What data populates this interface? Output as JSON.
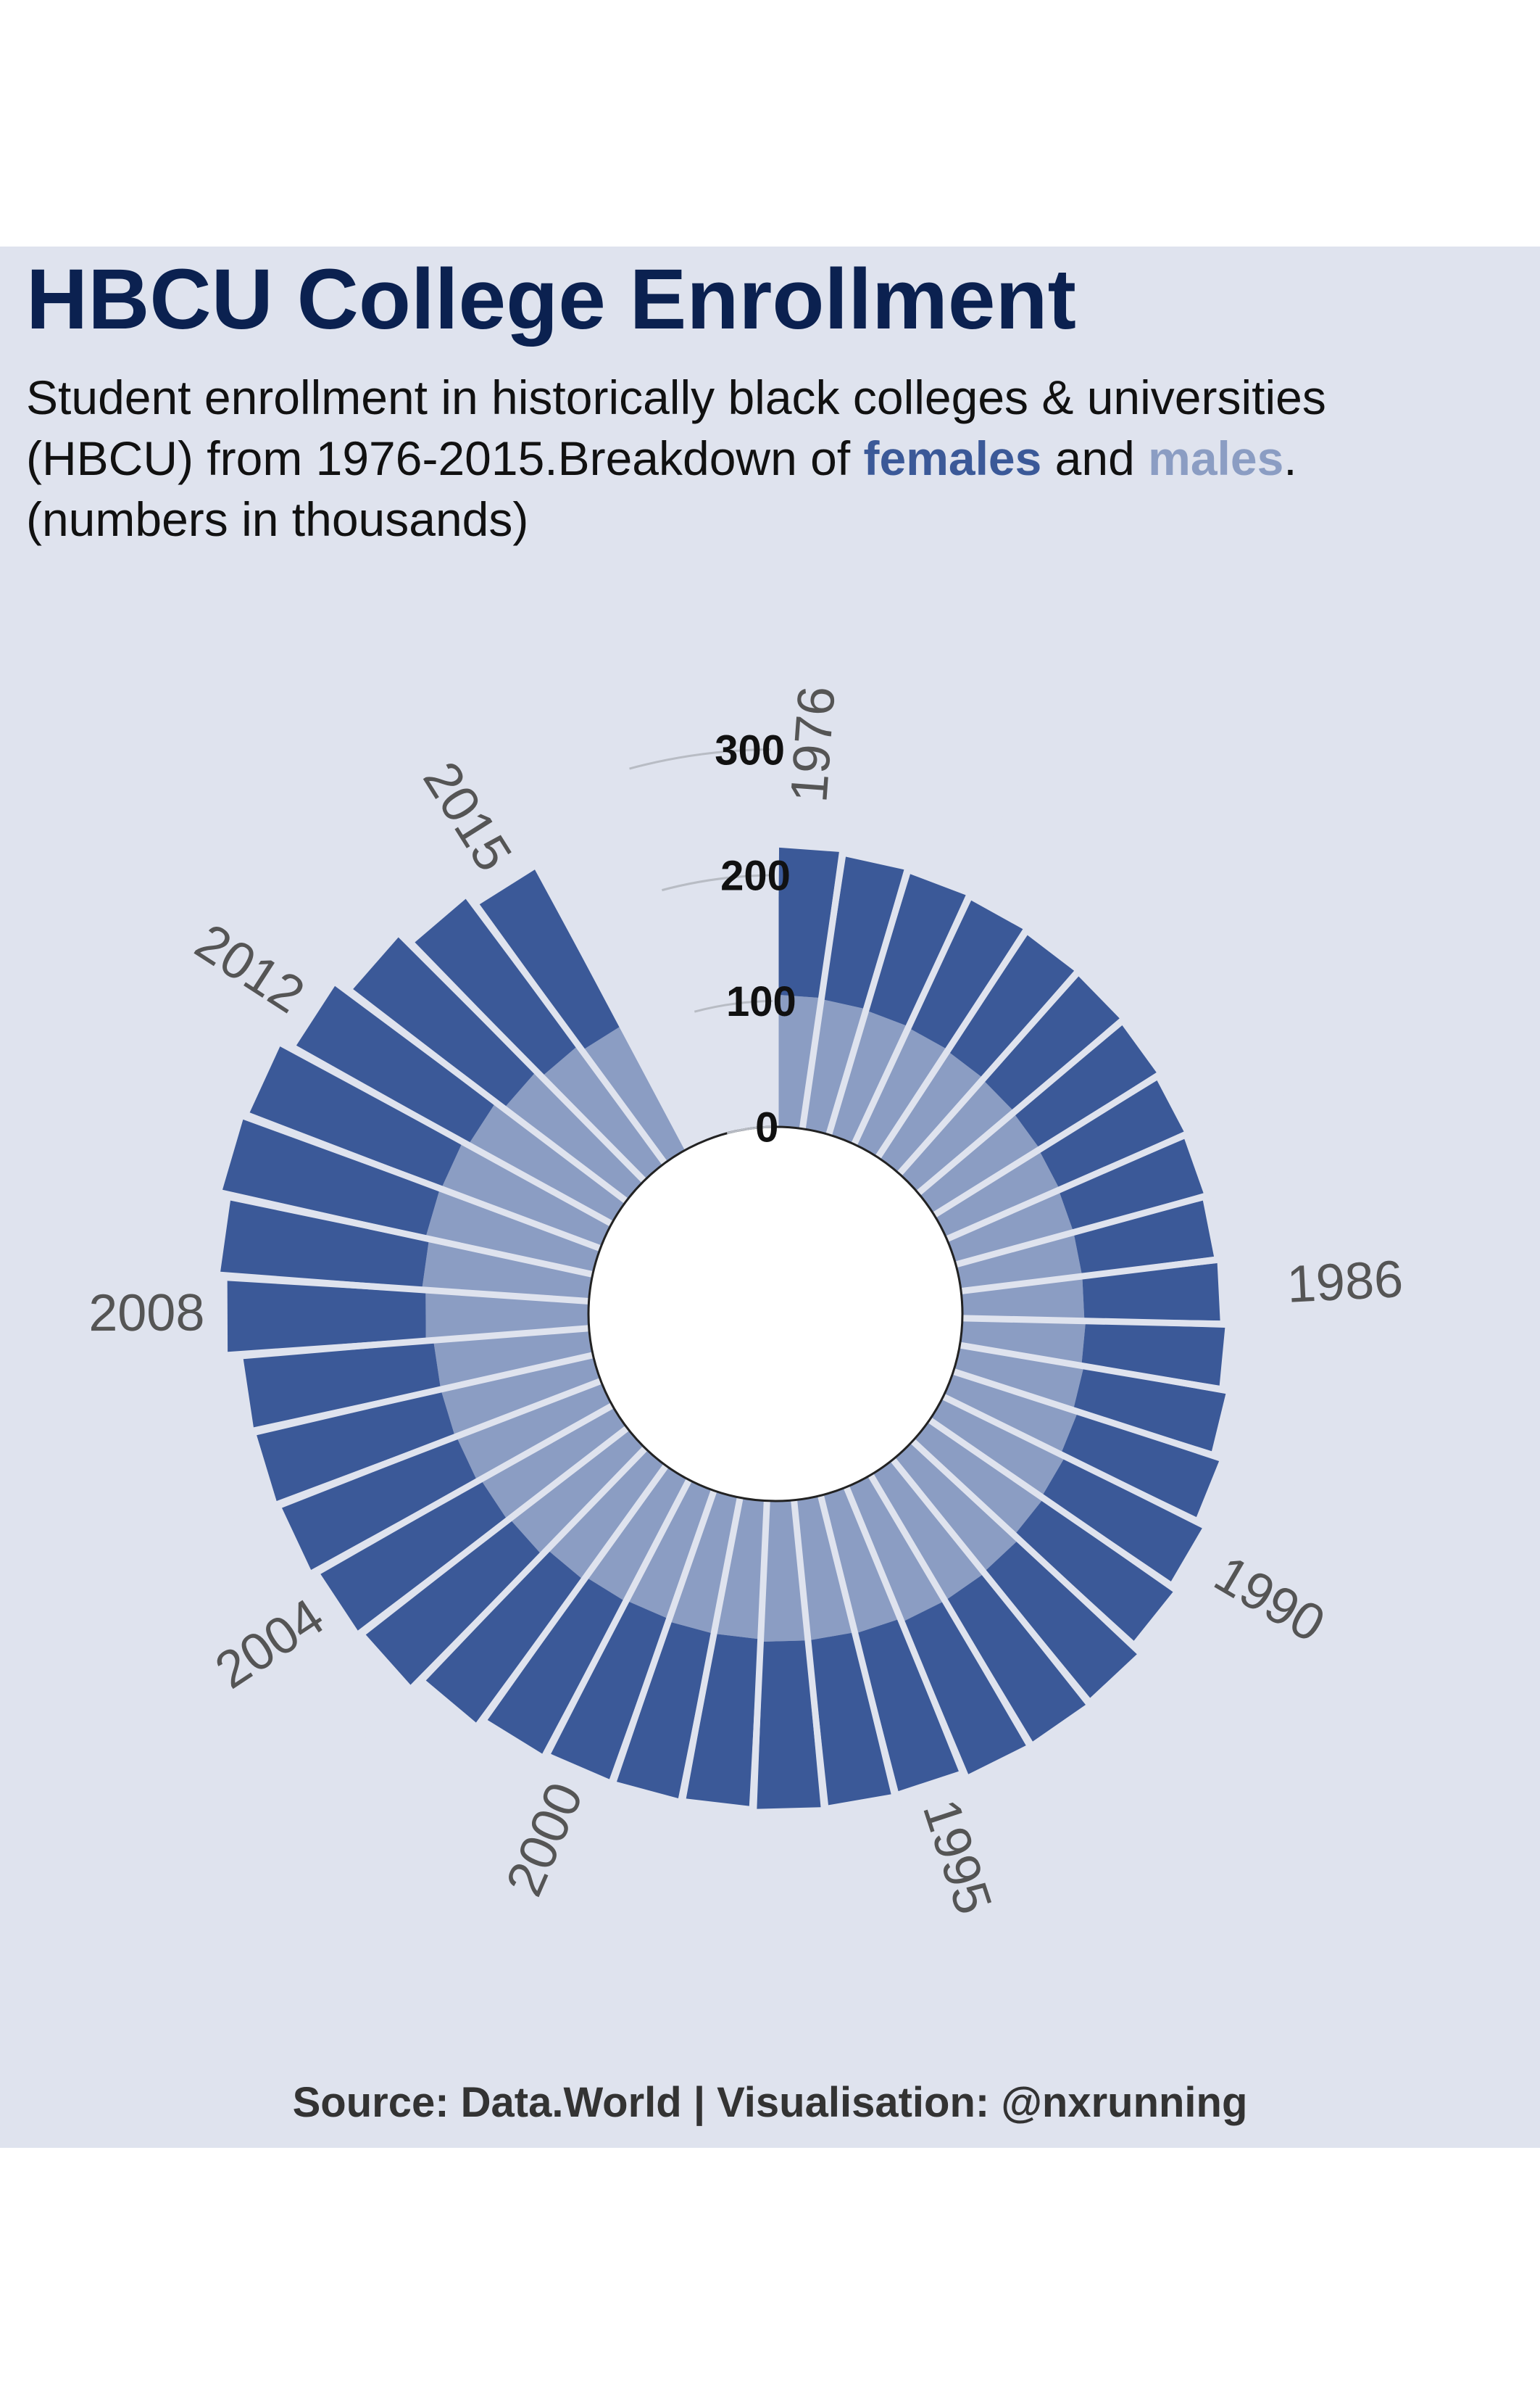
{
  "title": "HBCU College Enrollment",
  "subtitle": {
    "line1": "Student enrollment in historically black colleges & universities",
    "line2_pre": "(HBCU) from 1976-2015.Breakdown of ",
    "females_word": "females",
    "line2_mid": " and ",
    "males_word": "males",
    "line2_end": ".",
    "line3": "(numbers in thousands)"
  },
  "caption": "Source: Data.World | Visualisation: @nxrunning",
  "colors": {
    "background": "#dfe3ee",
    "female": "#3b5998",
    "male": "#8b9dc3",
    "title": "#0b2150",
    "year_label": "#555555"
  },
  "chart_data": {
    "type": "bar",
    "coord": "polar (circular stacked bar)",
    "categories": [
      "1976",
      "1977",
      "1978",
      "1979",
      "1980",
      "1981",
      "1982",
      "1983",
      "1984",
      "1985",
      "1986",
      "1987",
      "1988",
      "1989",
      "1990",
      "1991",
      "1992",
      "1993",
      "1994",
      "1995",
      "1996",
      "1997",
      "1998",
      "1999",
      "2000",
      "2001",
      "2002",
      "2003",
      "2004",
      "2005",
      "2006",
      "2007",
      "2008",
      "2009",
      "2010",
      "2011",
      "2012",
      "2013",
      "2014",
      "2015"
    ],
    "labeled_categories": [
      "1976",
      "1986",
      "1990",
      "1995",
      "2000",
      "2004",
      "2008",
      "2012",
      "2015"
    ],
    "series": [
      {
        "name": "males",
        "values": [
          105,
          104,
          103,
          102,
          101,
          100,
          99,
          98,
          97,
          97,
          97,
          98,
          100,
          104,
          108,
          110,
          115,
          116,
          116,
          113,
          112,
          112,
          110,
          110,
          108,
          109,
          112,
          118,
          120,
          123,
          124,
          124,
          130,
          133,
          136,
          135,
          130,
          122,
          116,
          111
        ]
      },
      {
        "name": "females",
        "values": [
          117,
          115,
          114,
          113,
          112,
          112,
          111,
          109,
          108,
          106,
          108,
          111,
          115,
          119,
          123,
          127,
          131,
          132,
          132,
          130,
          132,
          133,
          133,
          134,
          136,
          138,
          142,
          147,
          148,
          150,
          151,
          152,
          158,
          161,
          166,
          164,
          158,
          153,
          147,
          142
        ]
      }
    ],
    "stacked": true,
    "radial_axis": {
      "ticks": [
        0,
        100,
        200,
        300
      ],
      "labels": [
        "0",
        "100",
        "200",
        "300"
      ],
      "range": [
        0,
        300
      ]
    },
    "units": "thousands",
    "legend": "none (colors explained in subtitle)"
  }
}
